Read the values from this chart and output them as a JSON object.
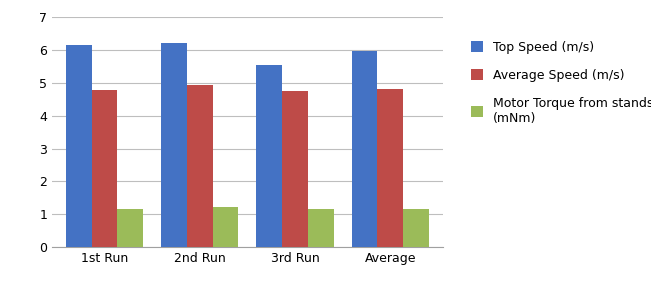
{
  "categories": [
    "1st Run",
    "2nd Run",
    "3rd Run",
    "Average"
  ],
  "series": [
    {
      "label": "Top Speed (m/s)",
      "values": [
        6.13,
        6.2,
        5.55,
        5.97
      ],
      "color": "#4472C4"
    },
    {
      "label": "Average Speed (m/s)",
      "values": [
        4.78,
        4.92,
        4.75,
        4.82
      ],
      "color": "#BE4B48"
    },
    {
      "label": "Motor Torque from standstill\n(mNm)",
      "values": [
        1.15,
        1.22,
        1.15,
        1.17
      ],
      "color": "#9BBB59"
    }
  ],
  "ylim": [
    0,
    7
  ],
  "yticks": [
    0,
    1,
    2,
    3,
    4,
    5,
    6,
    7
  ],
  "bar_width": 0.27,
  "background_color": "#FFFFFF",
  "grid_color": "#BEBEBE",
  "legend_fontsize": 9,
  "tick_fontsize": 9,
  "figsize": [
    6.51,
    2.81
  ],
  "dpi": 100
}
